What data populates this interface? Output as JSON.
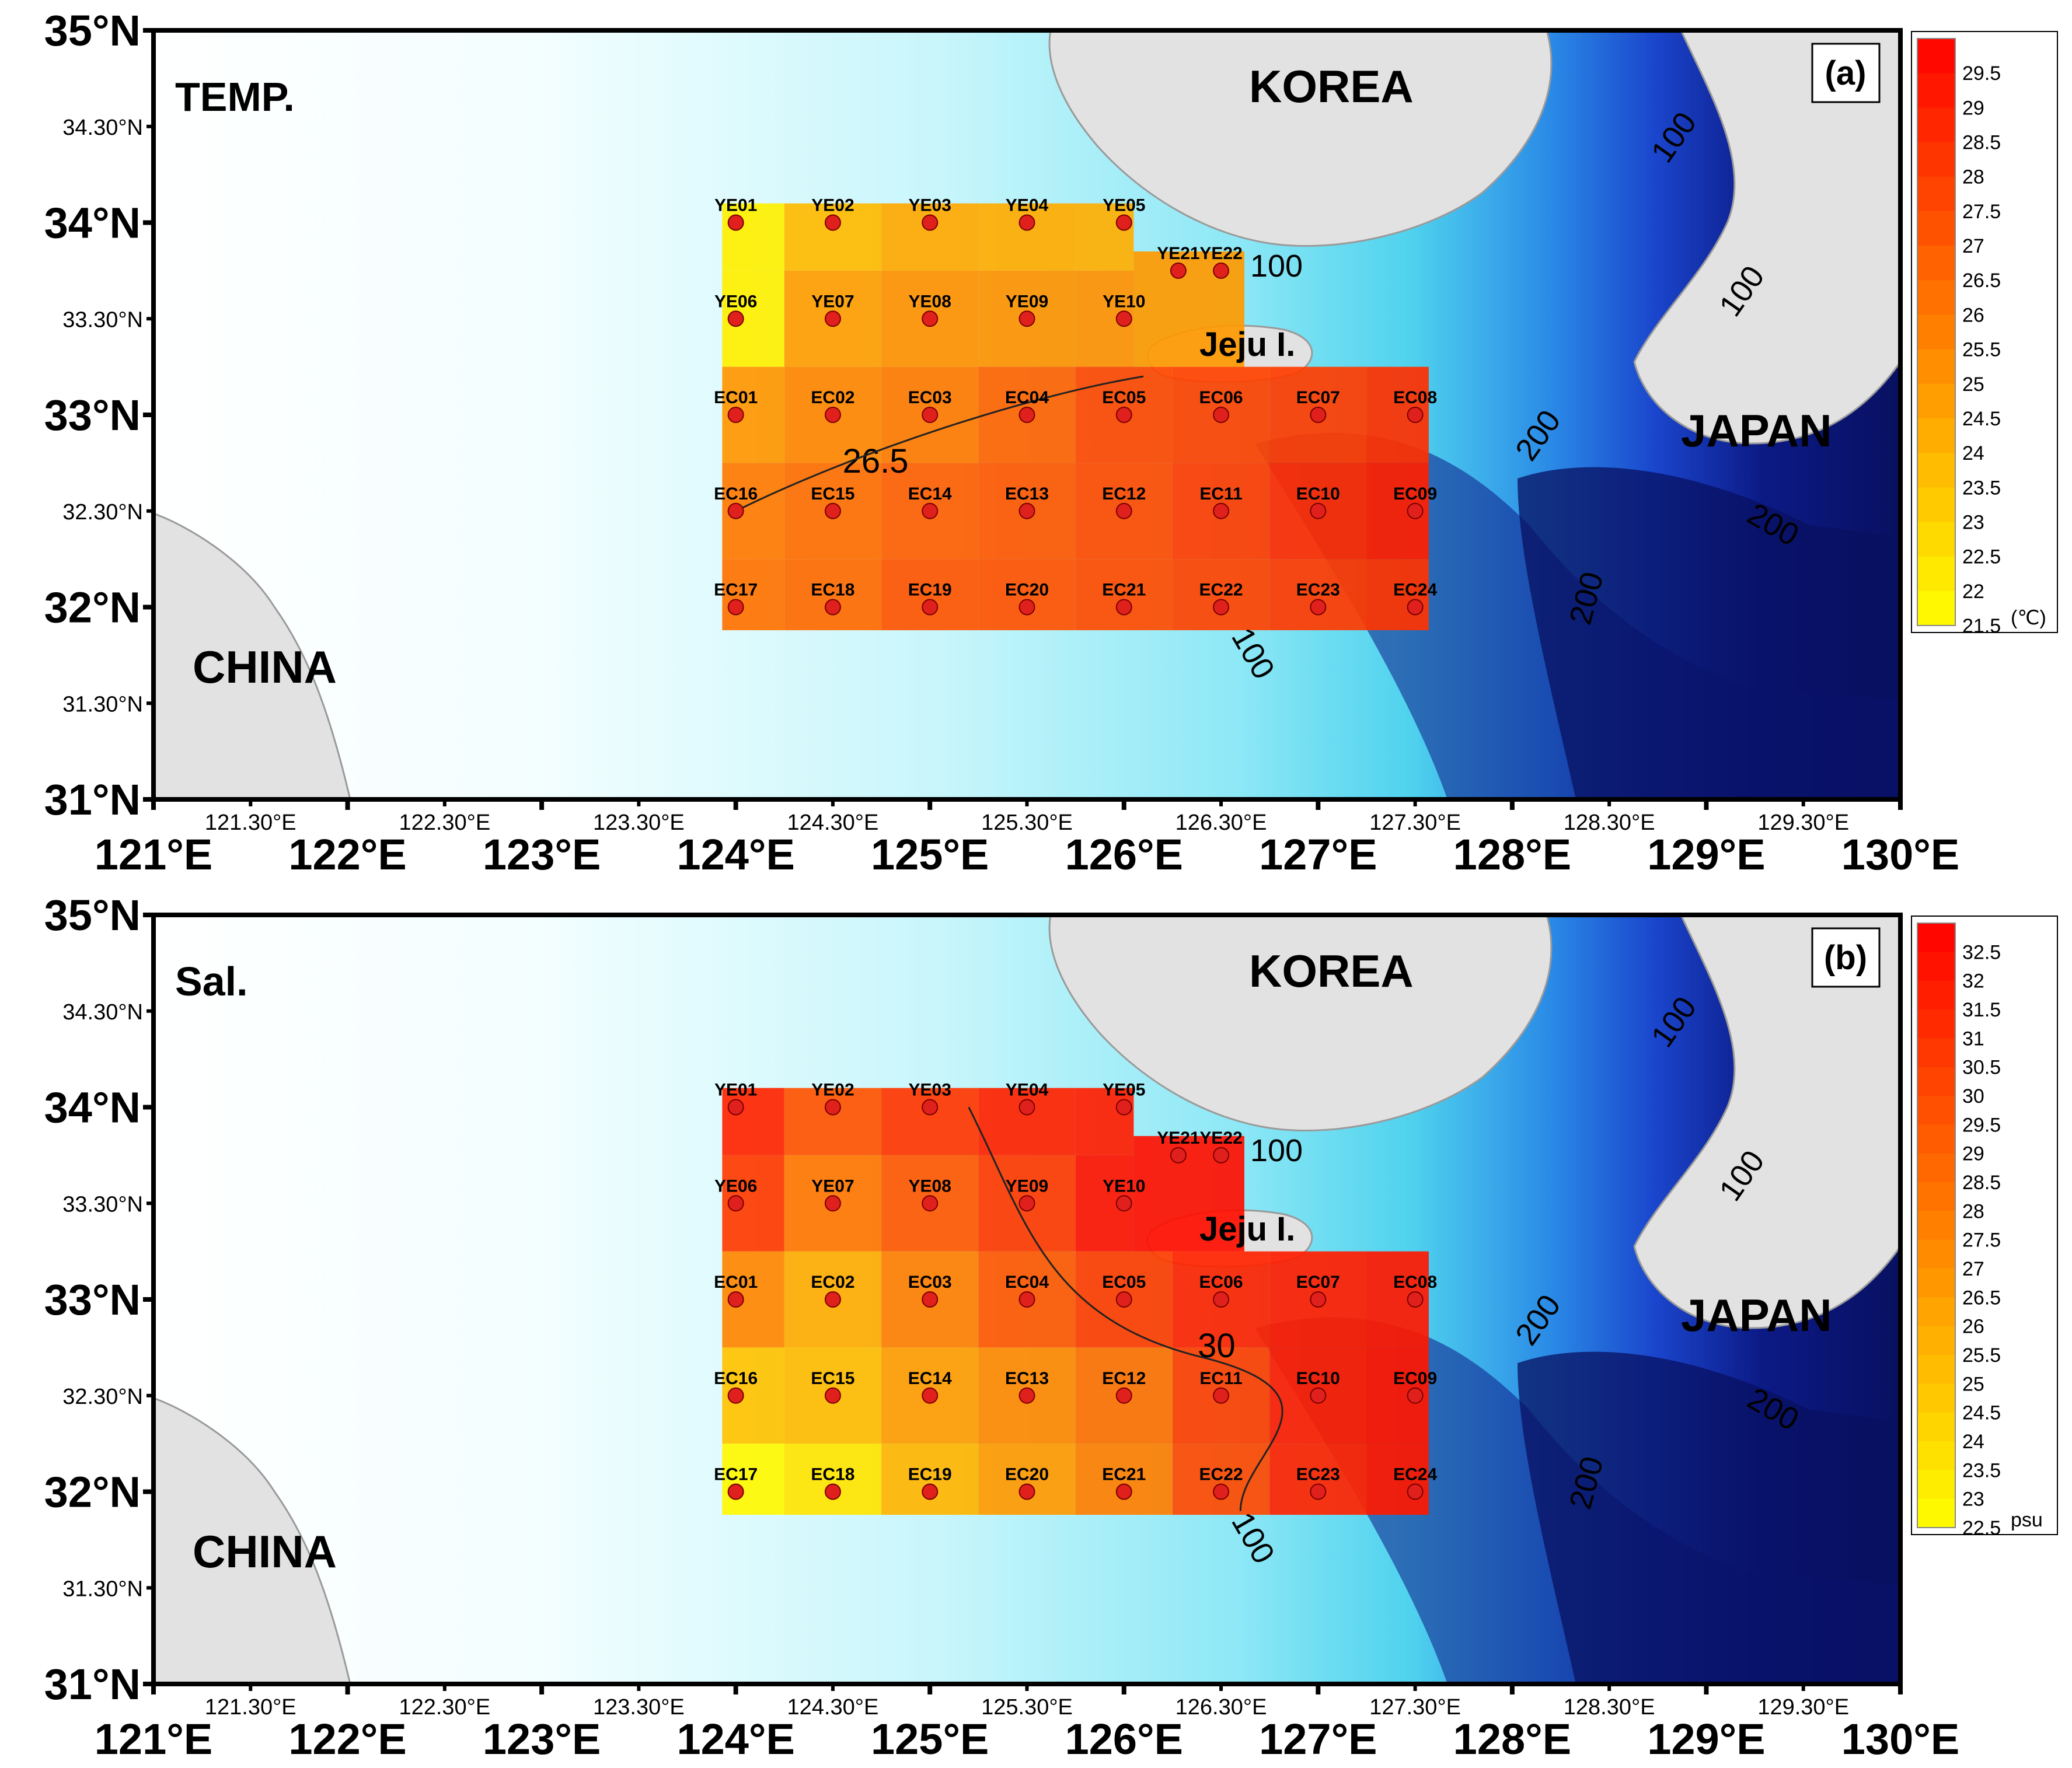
{
  "panels": [
    {
      "id": "a",
      "variable_label": "TEMP.",
      "panel_tag": "(a)",
      "colorbar": {
        "unit": "(℃)",
        "min": 21.5,
        "max": 30,
        "step": 0.5,
        "tick_labels": [
          "21.5",
          "22",
          "22.5",
          "23",
          "23.5",
          "24",
          "24.5",
          "25",
          "25.5",
          "26",
          "26.5",
          "27",
          "27.5",
          "28",
          "28.5",
          "29",
          "29.5"
        ]
      },
      "contour_label": "26.5",
      "station_values": {
        "YE01": 22.0,
        "YE02": 23.8,
        "YE03": 24.4,
        "YE04": 24.3,
        "YE05": 24.2,
        "YE21": 24.8,
        "YE22": 25.0,
        "YE06": 22.0,
        "YE07": 24.8,
        "YE08": 25.2,
        "YE09": 25.1,
        "YE10": 25.2,
        "EC01": 25.0,
        "EC02": 25.6,
        "EC03": 26.0,
        "EC04": 26.7,
        "EC05": 27.6,
        "EC06": 27.8,
        "EC07": 28.0,
        "EC08": 28.4,
        "EC16": 26.0,
        "EC15": 26.4,
        "EC14": 26.9,
        "EC13": 27.1,
        "EC12": 27.5,
        "EC11": 28.0,
        "EC10": 28.6,
        "EC09": 29.0,
        "EC17": 26.2,
        "EC18": 26.5,
        "EC19": 27.2,
        "EC20": 27.3,
        "EC21": 27.5,
        "EC22": 27.8,
        "EC23": 28.1,
        "EC24": 28.3
      }
    },
    {
      "id": "b",
      "variable_label": "Sal.",
      "panel_tag": "(b)",
      "colorbar": {
        "unit": "psu",
        "min": 22.5,
        "max": 33,
        "step": 0.5,
        "tick_labels": [
          "22.5",
          "23",
          "23.5",
          "24",
          "24.5",
          "25",
          "25.5",
          "26",
          "26.5",
          "27",
          "27.5",
          "28",
          "28.5",
          "29",
          "29.5",
          "30",
          "30.5",
          "31",
          "31.5",
          "32",
          "32.5"
        ]
      },
      "contour_label": "30",
      "station_values": {
        "YE01": 31.5,
        "YE02": 29.6,
        "YE03": 30.8,
        "YE04": 31.6,
        "YE05": 31.8,
        "YE21": 32.3,
        "YE22": 32.5,
        "YE06": 30.6,
        "YE07": 28.2,
        "YE08": 29.4,
        "YE09": 30.6,
        "YE10": 32.2,
        "EC01": 27.5,
        "EC02": 26.0,
        "EC03": 27.8,
        "EC04": 29.4,
        "EC05": 30.5,
        "EC06": 31.5,
        "EC07": 31.8,
        "EC08": 32.0,
        "EC16": 25.0,
        "EC15": 25.3,
        "EC14": 26.6,
        "EC13": 27.4,
        "EC12": 28.4,
        "EC11": 30.4,
        "EC10": 31.8,
        "EC09": 32.1,
        "EC17": 22.8,
        "EC18": 23.6,
        "EC19": 25.6,
        "EC20": 26.7,
        "EC21": 27.8,
        "EC22": 30.0,
        "EC23": 31.5,
        "EC24": 32.0
      }
    }
  ],
  "map_labels": {
    "korea": "KOREA",
    "japan": "JAPAN",
    "china": "CHINA",
    "jeju": "Jeju I."
  },
  "isobath_labels": [
    "100",
    "100",
    "100",
    "100",
    "200",
    "200",
    "200"
  ],
  "lat_major_labels": [
    "35°N",
    "34°N",
    "33°N",
    "32°N",
    "31°N"
  ],
  "lat_minor_labels": [
    "34.30°N",
    "33.30°N",
    "32.30°N",
    "31.30°N"
  ],
  "lon_major_labels": [
    "121°E",
    "122°E",
    "123°E",
    "124°E",
    "125°E",
    "126°E",
    "127°E",
    "128°E",
    "129°E",
    "130°E"
  ],
  "lon_minor_labels": [
    "121.30°E",
    "122.30°E",
    "123.30°E",
    "124.30°E",
    "125.30°E",
    "126.30°E",
    "127.30°E",
    "128.30°E",
    "129.30°E"
  ],
  "stations": [
    {
      "id": "YE01",
      "lon": 124.0,
      "lat": 34.0
    },
    {
      "id": "YE02",
      "lon": 124.5,
      "lat": 34.0
    },
    {
      "id": "YE03",
      "lon": 125.0,
      "lat": 34.0
    },
    {
      "id": "YE04",
      "lon": 125.5,
      "lat": 34.0
    },
    {
      "id": "YE05",
      "lon": 126.0,
      "lat": 34.0
    },
    {
      "id": "YE21",
      "lon": 126.28,
      "lat": 33.75
    },
    {
      "id": "YE22",
      "lon": 126.5,
      "lat": 33.75
    },
    {
      "id": "YE06",
      "lon": 124.0,
      "lat": 33.5
    },
    {
      "id": "YE07",
      "lon": 124.5,
      "lat": 33.5
    },
    {
      "id": "YE08",
      "lon": 125.0,
      "lat": 33.5
    },
    {
      "id": "YE09",
      "lon": 125.5,
      "lat": 33.5
    },
    {
      "id": "YE10",
      "lon": 126.0,
      "lat": 33.5
    },
    {
      "id": "EC01",
      "lon": 124.0,
      "lat": 33.0
    },
    {
      "id": "EC02",
      "lon": 124.5,
      "lat": 33.0
    },
    {
      "id": "EC03",
      "lon": 125.0,
      "lat": 33.0
    },
    {
      "id": "EC04",
      "lon": 125.5,
      "lat": 33.0
    },
    {
      "id": "EC05",
      "lon": 126.0,
      "lat": 33.0
    },
    {
      "id": "EC06",
      "lon": 126.5,
      "lat": 33.0
    },
    {
      "id": "EC07",
      "lon": 127.0,
      "lat": 33.0
    },
    {
      "id": "EC08",
      "lon": 127.5,
      "lat": 33.0
    },
    {
      "id": "EC16",
      "lon": 124.0,
      "lat": 32.5
    },
    {
      "id": "EC15",
      "lon": 124.5,
      "lat": 32.5
    },
    {
      "id": "EC14",
      "lon": 125.0,
      "lat": 32.5
    },
    {
      "id": "EC13",
      "lon": 125.5,
      "lat": 32.5
    },
    {
      "id": "EC12",
      "lon": 126.0,
      "lat": 32.5
    },
    {
      "id": "EC11",
      "lon": 126.5,
      "lat": 32.5
    },
    {
      "id": "EC10",
      "lon": 127.0,
      "lat": 32.5
    },
    {
      "id": "EC09",
      "lon": 127.5,
      "lat": 32.5
    },
    {
      "id": "EC17",
      "lon": 124.0,
      "lat": 32.0
    },
    {
      "id": "EC18",
      "lon": 124.5,
      "lat": 32.0
    },
    {
      "id": "EC19",
      "lon": 125.0,
      "lat": 32.0
    },
    {
      "id": "EC20",
      "lon": 125.5,
      "lat": 32.0
    },
    {
      "id": "EC21",
      "lon": 126.0,
      "lat": 32.0
    },
    {
      "id": "EC22",
      "lon": 126.5,
      "lat": 32.0
    },
    {
      "id": "EC23",
      "lon": 127.0,
      "lat": 32.0
    },
    {
      "id": "EC24",
      "lon": 127.5,
      "lat": 32.0
    }
  ],
  "colors": {
    "station_marker": "#e0201c",
    "land": "#e2e2e2",
    "land_edge": "#9a9a9a",
    "sea_shelf": "#b8f0f6",
    "sea_mid": "#4fd4ee",
    "sea_deep": "#1a4fd2",
    "sea_abyss": "#0a0f6e",
    "scale_low": "#ffff00",
    "scale_high": "#ff0000"
  },
  "static_labels": {
    "kr_a": "KOREA",
    "jp_a": "JAPAN",
    "cn_a": "CHINA",
    "je_a": "Jeju I.",
    "kr_b": "KOREA",
    "jp_b": "JAPAN",
    "cn_b": "CHINA",
    "je_b": "Jeju I."
  }
}
